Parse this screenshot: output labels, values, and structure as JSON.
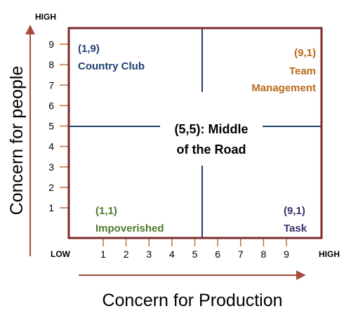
{
  "diagram": {
    "y_axis": {
      "title": "Concern for people",
      "high_label": "HIGH",
      "ticks": [
        {
          "label": "1",
          "value": 1
        },
        {
          "label": "2",
          "value": 2
        },
        {
          "label": "3",
          "value": 3
        },
        {
          "label": "4",
          "value": 4
        },
        {
          "label": "5",
          "value": 5
        },
        {
          "label": "6",
          "value": 6
        },
        {
          "label": "7",
          "value": 7
        },
        {
          "label": "8",
          "value": 8
        },
        {
          "label": "9",
          "value": 9
        }
      ]
    },
    "x_axis": {
      "title": "Concern for Production",
      "low_label": "LOW",
      "high_label": "HIGH",
      "ticks": [
        {
          "label": "1",
          "value": 1
        },
        {
          "label": "2",
          "value": 2
        },
        {
          "label": "3",
          "value": 3
        },
        {
          "label": "4",
          "value": 4
        },
        {
          "label": "5",
          "value": 5
        },
        {
          "label": "6",
          "value": 6
        },
        {
          "label": "7",
          "value": 7
        },
        {
          "label": "8",
          "value": 8
        },
        {
          "label": "9",
          "value": 9
        }
      ]
    },
    "styles": [
      {
        "coords": "(1,9)",
        "name": "Country Club",
        "color": "#1f3f73"
      },
      {
        "coords": "(9,1)",
        "name_lines": [
          "Team",
          "Management"
        ],
        "color": "#b86a1b"
      },
      {
        "coords": "(5,5): Middle",
        "line2": "of the Road",
        "color": "#000000"
      },
      {
        "coords": "(1,1)",
        "name": "Impoverished",
        "color": "#4e7a2b"
      },
      {
        "coords": "(9,1)",
        "name": "Task",
        "color": "#3d2f6b"
      }
    ],
    "colors": {
      "frame": "#7b2a2a",
      "axis_arrow": "#a8493f",
      "grid_line": "#1f3f73",
      "tick": "#c0703a"
    }
  }
}
